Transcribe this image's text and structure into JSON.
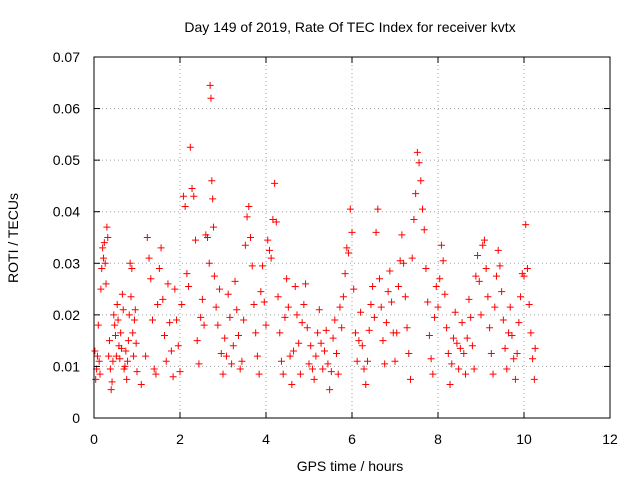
{
  "chart_data": {
    "type": "scatter",
    "title": "Day 149 of 2019, Rate Of TEC Index for receiver kvtx",
    "xlabel": "GPS time / hours",
    "ylabel": "ROTI / TECUs",
    "xlim": [
      0,
      12
    ],
    "ylim": [
      0,
      0.07
    ],
    "x_ticks": [
      0,
      2,
      4,
      6,
      8,
      10,
      12
    ],
    "x_tick_labels": [
      "0",
      "2",
      "4",
      "6",
      "8",
      "10",
      "12"
    ],
    "y_ticks": [
      0,
      0.01,
      0.02,
      0.03,
      0.04,
      0.05,
      0.06,
      0.07
    ],
    "y_tick_labels": [
      "0",
      "0.01",
      "0.02",
      "0.03",
      "0.04",
      "0.05",
      "0.06",
      "0.07"
    ],
    "grid": true,
    "marker": "plus",
    "series": [
      {
        "name": "ROTI",
        "color": "#ff0000",
        "points": [
          [
            0.02,
            0.013
          ],
          [
            0.04,
            0.0075
          ],
          [
            0.06,
            0.0095
          ],
          [
            0.08,
            0.012
          ],
          [
            0.1,
            0.018
          ],
          [
            0.12,
            0.011
          ],
          [
            0.14,
            0.0085
          ],
          [
            0.16,
            0.025
          ],
          [
            0.18,
            0.029
          ],
          [
            0.2,
            0.033
          ],
          [
            0.22,
            0.031
          ],
          [
            0.24,
            0.034
          ],
          [
            0.26,
            0.03
          ],
          [
            0.28,
            0.026
          ],
          [
            0.3,
            0.037
          ],
          [
            0.32,
            0.035
          ],
          [
            0.34,
            0.012
          ],
          [
            0.36,
            0.015
          ],
          [
            0.38,
            0.0095
          ],
          [
            0.4,
            0.0055
          ],
          [
            0.42,
            0.007
          ],
          [
            0.44,
            0.011
          ],
          [
            0.46,
            0.02
          ],
          [
            0.48,
            0.018
          ],
          [
            0.5,
            0.016
          ],
          [
            0.52,
            0.012
          ],
          [
            0.54,
            0.022
          ],
          [
            0.56,
            0.019
          ],
          [
            0.58,
            0.014
          ],
          [
            0.6,
            0.0115
          ],
          [
            0.62,
            0.0165
          ],
          [
            0.64,
            0.0135
          ],
          [
            0.66,
            0.024
          ],
          [
            0.68,
            0.021
          ],
          [
            0.7,
            0.0095
          ],
          [
            0.72,
            0.01
          ],
          [
            0.74,
            0.013
          ],
          [
            0.76,
            0.0075
          ],
          [
            0.78,
            0.011
          ],
          [
            0.8,
            0.015
          ],
          [
            0.82,
            0.02
          ],
          [
            0.84,
            0.03
          ],
          [
            0.86,
            0.0235
          ],
          [
            0.88,
            0.029
          ],
          [
            0.9,
            0.0165
          ],
          [
            0.92,
            0.012
          ],
          [
            0.94,
            0.019
          ],
          [
            0.96,
            0.021
          ],
          [
            0.98,
            0.0145
          ],
          [
            1.0,
            0.009
          ],
          [
            1.1,
            0.0065
          ],
          [
            1.2,
            0.012
          ],
          [
            1.24,
            0.035
          ],
          [
            1.28,
            0.031
          ],
          [
            1.32,
            0.027
          ],
          [
            1.36,
            0.019
          ],
          [
            1.4,
            0.0095
          ],
          [
            1.44,
            0.0085
          ],
          [
            1.48,
            0.022
          ],
          [
            1.52,
            0.029
          ],
          [
            1.56,
            0.033
          ],
          [
            1.6,
            0.023
          ],
          [
            1.64,
            0.016
          ],
          [
            1.68,
            0.011
          ],
          [
            1.72,
            0.026
          ],
          [
            1.76,
            0.0185
          ],
          [
            1.8,
            0.013
          ],
          [
            1.84,
            0.008
          ],
          [
            1.88,
            0.025
          ],
          [
            1.92,
            0.019
          ],
          [
            1.96,
            0.014
          ],
          [
            2.0,
            0.009
          ],
          [
            2.04,
            0.022
          ],
          [
            2.08,
            0.043
          ],
          [
            2.12,
            0.041
          ],
          [
            2.16,
            0.028
          ],
          [
            2.2,
            0.0255
          ],
          [
            2.24,
            0.0525
          ],
          [
            2.28,
            0.0445
          ],
          [
            2.32,
            0.043
          ],
          [
            2.36,
            0.0345
          ],
          [
            2.4,
            0.015
          ],
          [
            2.44,
            0.0105
          ],
          [
            2.48,
            0.0195
          ],
          [
            2.52,
            0.023
          ],
          [
            2.56,
            0.018
          ],
          [
            2.6,
            0.0355
          ],
          [
            2.64,
            0.035
          ],
          [
            2.68,
            0.03
          ],
          [
            2.7,
            0.0645
          ],
          [
            2.72,
            0.062
          ],
          [
            2.74,
            0.046
          ],
          [
            2.76,
            0.0425
          ],
          [
            2.78,
            0.037
          ],
          [
            2.8,
            0.0275
          ],
          [
            2.84,
            0.0215
          ],
          [
            2.88,
            0.018
          ],
          [
            2.92,
            0.025
          ],
          [
            2.96,
            0.0125
          ],
          [
            3.0,
            0.0085
          ],
          [
            3.04,
            0.0155
          ],
          [
            3.08,
            0.012
          ],
          [
            3.12,
            0.024
          ],
          [
            3.16,
            0.0195
          ],
          [
            3.2,
            0.0105
          ],
          [
            3.24,
            0.014
          ],
          [
            3.28,
            0.0265
          ],
          [
            3.32,
            0.021
          ],
          [
            3.36,
            0.016
          ],
          [
            3.4,
            0.0095
          ],
          [
            3.44,
            0.011
          ],
          [
            3.48,
            0.019
          ],
          [
            3.52,
            0.0335
          ],
          [
            3.56,
            0.039
          ],
          [
            3.6,
            0.041
          ],
          [
            3.64,
            0.035
          ],
          [
            3.68,
            0.0295
          ],
          [
            3.72,
            0.022
          ],
          [
            3.76,
            0.0165
          ],
          [
            3.8,
            0.012
          ],
          [
            3.84,
            0.0085
          ],
          [
            3.88,
            0.0245
          ],
          [
            3.92,
            0.0295
          ],
          [
            3.96,
            0.0225
          ],
          [
            4.0,
            0.018
          ],
          [
            4.04,
            0.0345
          ],
          [
            4.08,
            0.0325
          ],
          [
            4.12,
            0.031
          ],
          [
            4.16,
            0.0385
          ],
          [
            4.2,
            0.0455
          ],
          [
            4.24,
            0.038
          ],
          [
            4.28,
            0.0235
          ],
          [
            4.32,
            0.0165
          ],
          [
            4.36,
            0.011
          ],
          [
            4.4,
            0.0085
          ],
          [
            4.44,
            0.0195
          ],
          [
            4.48,
            0.027
          ],
          [
            4.52,
            0.0215
          ],
          [
            4.56,
            0.012
          ],
          [
            4.6,
            0.0065
          ],
          [
            4.64,
            0.013
          ],
          [
            4.68,
            0.0255
          ],
          [
            4.72,
            0.02
          ],
          [
            4.76,
            0.0145
          ],
          [
            4.8,
            0.0085
          ],
          [
            4.84,
            0.0185
          ],
          [
            4.88,
            0.022
          ],
          [
            4.92,
            0.026
          ],
          [
            4.96,
            0.0175
          ],
          [
            5.0,
            0.0105
          ],
          [
            5.04,
            0.014
          ],
          [
            5.08,
            0.0095
          ],
          [
            5.12,
            0.0075
          ],
          [
            5.16,
            0.012
          ],
          [
            5.2,
            0.0165
          ],
          [
            5.24,
            0.021
          ],
          [
            5.28,
            0.0145
          ],
          [
            5.32,
            0.0095
          ],
          [
            5.36,
            0.013
          ],
          [
            5.4,
            0.017
          ],
          [
            5.44,
            0.0105
          ],
          [
            5.48,
            0.0055
          ],
          [
            5.52,
            0.009
          ],
          [
            5.56,
            0.0155
          ],
          [
            5.6,
            0.019
          ],
          [
            5.64,
            0.0125
          ],
          [
            5.68,
            0.0085
          ],
          [
            5.72,
            0.0215
          ],
          [
            5.76,
            0.0175
          ],
          [
            5.8,
            0.0235
          ],
          [
            5.84,
            0.028
          ],
          [
            5.88,
            0.033
          ],
          [
            5.92,
            0.032
          ],
          [
            5.96,
            0.0405
          ],
          [
            6.0,
            0.036
          ],
          [
            6.04,
            0.025
          ],
          [
            6.08,
            0.0165
          ],
          [
            6.12,
            0.011
          ],
          [
            6.16,
            0.015
          ],
          [
            6.2,
            0.0205
          ],
          [
            6.24,
            0.014
          ],
          [
            6.28,
            0.0095
          ],
          [
            6.32,
            0.0065
          ],
          [
            6.36,
            0.011
          ],
          [
            6.4,
            0.017
          ],
          [
            6.44,
            0.022
          ],
          [
            6.48,
            0.0255
          ],
          [
            6.52,
            0.0195
          ],
          [
            6.56,
            0.036
          ],
          [
            6.6,
            0.0405
          ],
          [
            6.64,
            0.027
          ],
          [
            6.68,
            0.0215
          ],
          [
            6.72,
            0.015
          ],
          [
            6.76,
            0.0105
          ],
          [
            6.8,
            0.0185
          ],
          [
            6.84,
            0.0245
          ],
          [
            6.88,
            0.0285
          ],
          [
            6.92,
            0.0225
          ],
          [
            6.96,
            0.0165
          ],
          [
            7.0,
            0.011
          ],
          [
            7.04,
            0.0165
          ],
          [
            7.08,
            0.0255
          ],
          [
            7.12,
            0.0305
          ],
          [
            7.16,
            0.0355
          ],
          [
            7.2,
            0.03
          ],
          [
            7.24,
            0.0235
          ],
          [
            7.28,
            0.0175
          ],
          [
            7.32,
            0.0125
          ],
          [
            7.36,
            0.0075
          ],
          [
            7.4,
            0.031
          ],
          [
            7.44,
            0.0385
          ],
          [
            7.48,
            0.0435
          ],
          [
            7.52,
            0.0515
          ],
          [
            7.56,
            0.0495
          ],
          [
            7.6,
            0.046
          ],
          [
            7.64,
            0.0405
          ],
          [
            7.68,
            0.0365
          ],
          [
            7.72,
            0.029
          ],
          [
            7.76,
            0.0225
          ],
          [
            7.8,
            0.016
          ],
          [
            7.84,
            0.0115
          ],
          [
            7.88,
            0.0085
          ],
          [
            7.92,
            0.0195
          ],
          [
            7.96,
            0.0255
          ],
          [
            8.0,
            0.0215
          ],
          [
            8.04,
            0.027
          ],
          [
            8.08,
            0.0335
          ],
          [
            8.12,
            0.0305
          ],
          [
            8.16,
            0.024
          ],
          [
            8.2,
            0.0175
          ],
          [
            8.24,
            0.0125
          ],
          [
            8.28,
            0.0065
          ],
          [
            8.32,
            0.0105
          ],
          [
            8.36,
            0.0155
          ],
          [
            8.4,
            0.0205
          ],
          [
            8.44,
            0.0145
          ],
          [
            8.48,
            0.0095
          ],
          [
            8.52,
            0.0135
          ],
          [
            8.56,
            0.0185
          ],
          [
            8.6,
            0.0125
          ],
          [
            8.64,
            0.0085
          ],
          [
            8.68,
            0.0155
          ],
          [
            8.72,
            0.023
          ],
          [
            8.76,
            0.0195
          ],
          [
            8.8,
            0.014
          ],
          [
            8.84,
            0.0095
          ],
          [
            8.88,
            0.0275
          ],
          [
            8.92,
            0.0315
          ],
          [
            8.96,
            0.0265
          ],
          [
            9.0,
            0.02
          ],
          [
            9.04,
            0.0335
          ],
          [
            9.08,
            0.0345
          ],
          [
            9.12,
            0.029
          ],
          [
            9.16,
            0.0235
          ],
          [
            9.2,
            0.0175
          ],
          [
            9.24,
            0.0125
          ],
          [
            9.28,
            0.0085
          ],
          [
            9.32,
            0.0215
          ],
          [
            9.36,
            0.0275
          ],
          [
            9.4,
            0.0325
          ],
          [
            9.44,
            0.0295
          ],
          [
            9.48,
            0.0245
          ],
          [
            9.52,
            0.019
          ],
          [
            9.56,
            0.0135
          ],
          [
            9.6,
            0.0095
          ],
          [
            9.64,
            0.0165
          ],
          [
            9.68,
            0.0215
          ],
          [
            9.72,
            0.016
          ],
          [
            9.76,
            0.0115
          ],
          [
            9.8,
            0.0075
          ],
          [
            9.84,
            0.0125
          ],
          [
            9.88,
            0.0185
          ],
          [
            9.92,
            0.0235
          ],
          [
            9.96,
            0.028
          ],
          [
            10.0,
            0.0275
          ],
          [
            10.04,
            0.0375
          ],
          [
            10.08,
            0.029
          ],
          [
            10.12,
            0.022
          ],
          [
            10.16,
            0.0165
          ],
          [
            10.2,
            0.0115
          ],
          [
            10.24,
            0.0075
          ],
          [
            10.26,
            0.0135
          ]
        ]
      }
    ]
  }
}
